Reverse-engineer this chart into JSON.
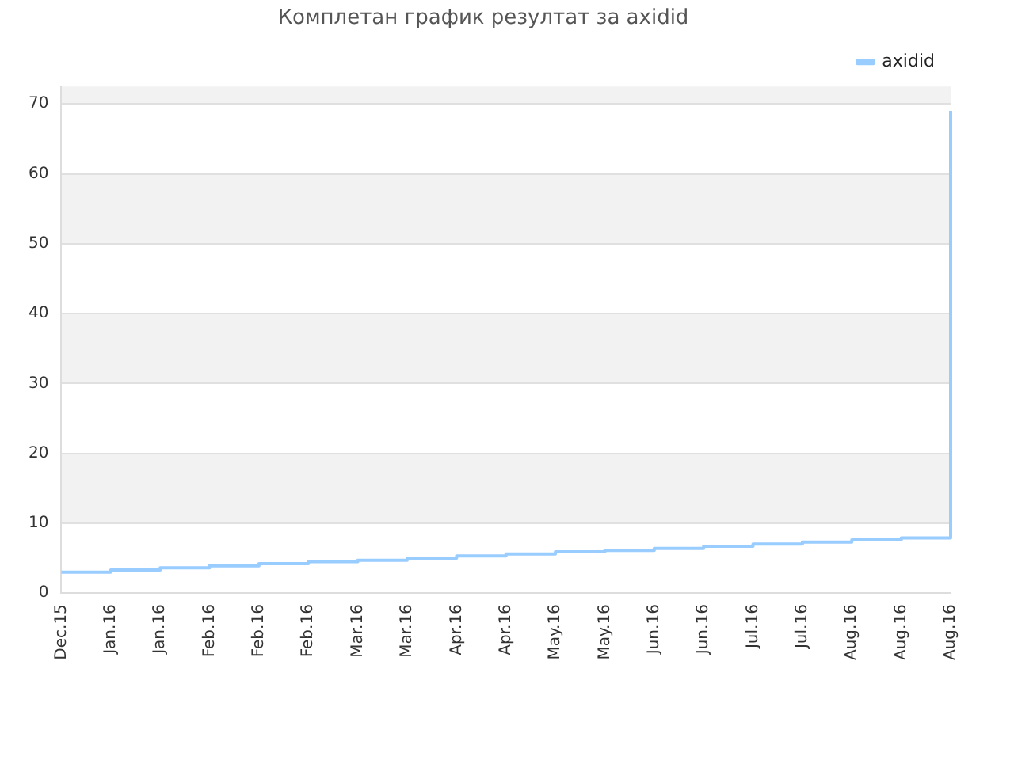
{
  "chart_data": {
    "type": "step",
    "title": "Комплетан график резултат за axidid",
    "categories": [
      "Dec.15",
      "Jan.16",
      "Jan.16",
      "Feb.16",
      "Feb.16",
      "Feb.16",
      "Mar.16",
      "Mar.16",
      "Apr.16",
      "Apr.16",
      "May.16",
      "May.16",
      "Jun.16",
      "Jun.16",
      "Jul.16",
      "Jul.16",
      "Aug.16",
      "Aug.16",
      "Aug.16"
    ],
    "series": [
      {
        "name": "axidid",
        "color": "#99ccff",
        "values": [
          3.0,
          3.3,
          3.6,
          3.9,
          4.2,
          4.5,
          4.7,
          5.0,
          5.3,
          5.6,
          5.9,
          6.1,
          6.4,
          6.7,
          7.0,
          7.3,
          7.6,
          7.9,
          69
        ]
      }
    ],
    "ylim": [
      0,
      72.5
    ],
    "yticks": [
      0,
      10,
      20,
      30,
      40,
      50,
      60,
      70
    ],
    "grid": "y",
    "legend": "top right"
  }
}
